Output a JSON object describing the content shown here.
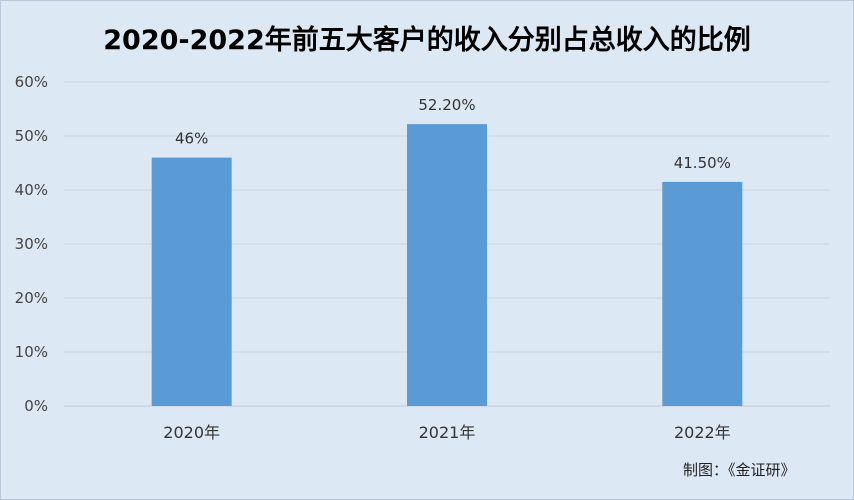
{
  "chart_data": {
    "type": "bar",
    "title": "2020-2022年前五大客户的收入分别占总收入的比例",
    "categories": [
      "2020年",
      "2021年",
      "2022年"
    ],
    "values": [
      46,
      52.2,
      41.5
    ],
    "data_labels": [
      "46%",
      "52.20%",
      "41.50%"
    ],
    "y_ticks": [
      "0%",
      "10%",
      "20%",
      "30%",
      "40%",
      "50%",
      "60%"
    ],
    "ylim": [
      0,
      60
    ],
    "grid": true,
    "legend": "none",
    "bar_color": "#5b9bd5",
    "grid_color": "#c8d4e2"
  },
  "credit": "制图：《金证研》"
}
